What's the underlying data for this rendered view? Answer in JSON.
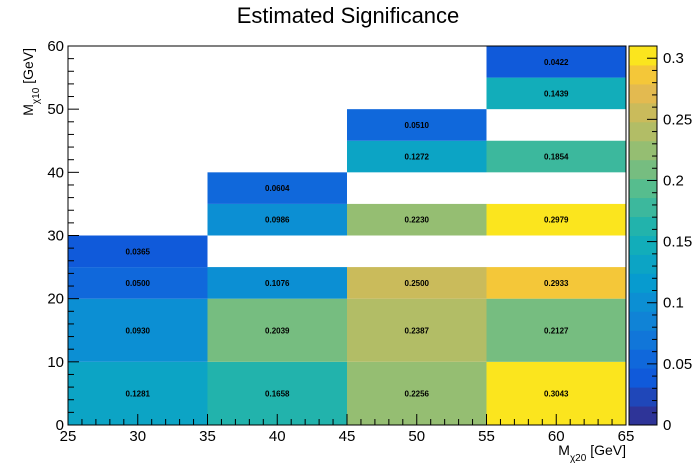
{
  "chart_data": {
    "type": "heatmap",
    "title": "Estimated Significance",
    "xlabel": {
      "main": "M",
      "sub": "χ20",
      "unit": " [GeV]"
    },
    "ylabel": {
      "main": "M",
      "sub": "χ10",
      "unit": " [GeV]"
    },
    "xlim": [
      25,
      65
    ],
    "ylim": [
      0,
      60
    ],
    "x_ticks": [
      "25",
      "30",
      "35",
      "40",
      "45",
      "50",
      "55",
      "60",
      "65"
    ],
    "y_ticks": [
      "0",
      "10",
      "20",
      "30",
      "40",
      "50",
      "60"
    ],
    "zlim": [
      0,
      0.31
    ],
    "z_ticks": [
      "0",
      "0.05",
      "0.1",
      "0.15",
      "0.2",
      "0.25",
      "0.3"
    ],
    "x_bin_edges": [
      25,
      35,
      45,
      55,
      65
    ],
    "y_bin_edges": [
      0,
      5,
      10,
      15,
      20,
      25,
      30,
      35,
      40,
      45,
      50,
      55,
      60
    ],
    "cells": [
      {
        "x": 30,
        "y": 5,
        "value": 0.1281,
        "label": "0.1281"
      },
      {
        "x": 30,
        "y": 15,
        "value": 0.093,
        "label": "0.0930"
      },
      {
        "x": 30,
        "y": 22.5,
        "value": 0.05,
        "label": "0.0500"
      },
      {
        "x": 30,
        "y": 27.5,
        "value": 0.0365,
        "label": "0.0365"
      },
      {
        "x": 40,
        "y": 5,
        "value": 0.1658,
        "label": "0.1658"
      },
      {
        "x": 40,
        "y": 15,
        "value": 0.2039,
        "label": "0.2039"
      },
      {
        "x": 40,
        "y": 22.5,
        "value": 0.1076,
        "label": "0.1076"
      },
      {
        "x": 40,
        "y": 32.5,
        "value": 0.0986,
        "label": "0.0986"
      },
      {
        "x": 40,
        "y": 37.5,
        "value": 0.0604,
        "label": "0.0604"
      },
      {
        "x": 50,
        "y": 5,
        "value": 0.2256,
        "label": "0.2256"
      },
      {
        "x": 50,
        "y": 15,
        "value": 0.2387,
        "label": "0.2387"
      },
      {
        "x": 50,
        "y": 22.5,
        "value": 0.25,
        "label": "0.2500"
      },
      {
        "x": 50,
        "y": 32.5,
        "value": 0.223,
        "label": "0.2230"
      },
      {
        "x": 50,
        "y": 42.5,
        "value": 0.1272,
        "label": "0.1272"
      },
      {
        "x": 50,
        "y": 47.5,
        "value": 0.051,
        "label": "0.0510"
      },
      {
        "x": 60,
        "y": 5,
        "value": 0.3043,
        "label": "0.3043"
      },
      {
        "x": 60,
        "y": 15,
        "value": 0.2127,
        "label": "0.2127"
      },
      {
        "x": 60,
        "y": 22.5,
        "value": 0.2933,
        "label": "0.2933"
      },
      {
        "x": 60,
        "y": 32.5,
        "value": 0.2979,
        "label": "0.2979"
      },
      {
        "x": 60,
        "y": 42.5,
        "value": 0.1854,
        "label": "0.1854"
      },
      {
        "x": 60,
        "y": 52.5,
        "value": 0.1439,
        "label": "0.1439"
      },
      {
        "x": 60,
        "y": 57.5,
        "value": 0.0422,
        "label": "0.0422"
      }
    ],
    "cell_spans": {
      "5": [
        0,
        10
      ],
      "15": [
        10,
        20
      ],
      "22.5": [
        20,
        25
      ],
      "27.5": [
        25,
        30
      ],
      "32.5": [
        30,
        35
      ],
      "37.5": [
        35,
        40
      ],
      "42.5": [
        40,
        45
      ],
      "47.5": [
        45,
        50
      ],
      "52.5": [
        50,
        55
      ],
      "57.5": [
        55,
        60
      ]
    },
    "palette": "parula",
    "grid": false,
    "colorbar": "right"
  }
}
